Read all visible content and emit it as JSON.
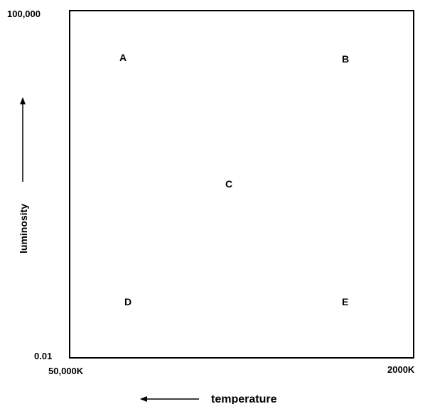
{
  "diagram": {
    "y_axis": {
      "label": "luminosity",
      "top_tick": "100,000",
      "bottom_tick": "0.01",
      "direction": "up"
    },
    "x_axis": {
      "label": "temperature",
      "left_tick": "50,000K",
      "right_tick": "2000K",
      "direction": "left"
    },
    "points": [
      {
        "label": "A"
      },
      {
        "label": "B"
      },
      {
        "label": "C"
      },
      {
        "label": "D"
      },
      {
        "label": "E"
      }
    ]
  }
}
